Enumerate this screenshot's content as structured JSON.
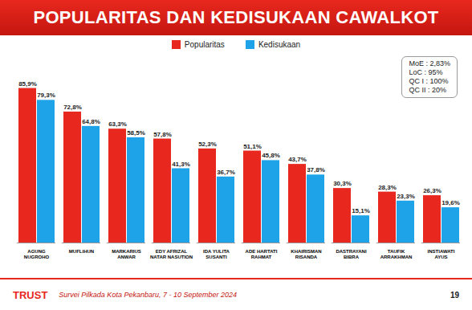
{
  "chart_data": {
    "type": "bar",
    "title": "POPULARITAS DAN KEDISUKAAN CAWALKOT",
    "categories": [
      "AGUNG NUGROHO",
      "MUFLIHUN",
      "MARKARIUS ANWAR",
      "EDY AFRIZAL NATAR NASUTION",
      "IDA YULITA SUSANTI",
      "ADE HARTATI RAHMAT",
      "KHAIRISMAN RISANDA",
      "DASTRAYANI BIBRA",
      "TAUFIK ARRAKHMAN",
      "INSTIAWATI AYUS"
    ],
    "series": [
      {
        "name": "Popularitas",
        "color": "#e8281e",
        "values": [
          85.9,
          72.8,
          63.3,
          57.8,
          52.3,
          51.1,
          43.7,
          30.3,
          28.3,
          26.3
        ],
        "value_labels": [
          "85,9%",
          "72,8%",
          "63,3%",
          "57,8%",
          "52,3%",
          "51,1%",
          "43,7%",
          "30,3%",
          "28,3%",
          "26,3%"
        ]
      },
      {
        "name": "Kedisukaan",
        "color": "#1fa3e8",
        "values": [
          79.3,
          64.8,
          58.5,
          41.3,
          36.7,
          45.8,
          37.8,
          15.1,
          23.3,
          19.6
        ],
        "value_labels": [
          "79,3%",
          "64,8%",
          "58,5%",
          "41,3%",
          "36,7%",
          "45,8%",
          "37,8%",
          "15,1%",
          "23,3%",
          "19,6%"
        ]
      }
    ],
    "ylim": [
      0,
      100
    ],
    "data_labels": true,
    "tick_labels": "x",
    "legend": "top",
    "annotations": [
      "MoE : 2,83%",
      "LoC : 95%",
      "QC I : 100%",
      "QC II : 20%"
    ],
    "logo": "TRUST",
    "caption": "Survei Pilkada Kota Pekanbaru, 7 - 10 September 2024",
    "page_number": "19"
  }
}
